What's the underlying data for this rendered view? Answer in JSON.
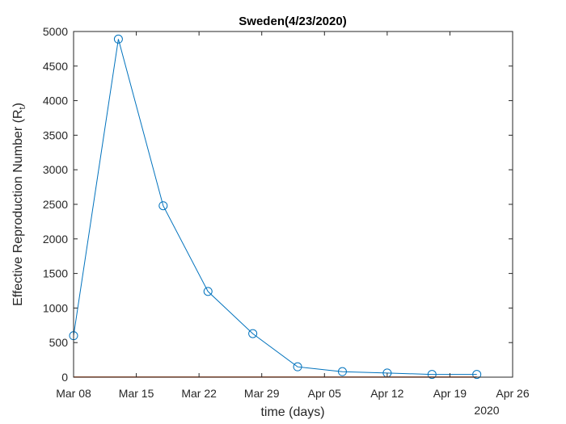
{
  "chart_data": {
    "type": "line",
    "title": "Sweden(4/23/2020)",
    "xlabel": "time (days)",
    "ylabel_main": "Effective Reproduction Number (R",
    "ylabel_sub": "t",
    "ylabel_close": ")",
    "year_label": "2020",
    "xlim": [
      "2020-03-08",
      "2020-04-26"
    ],
    "ylim": [
      0,
      5000
    ],
    "x_ticks": [
      {
        "date": "2020-03-08",
        "label": "Mar 08"
      },
      {
        "date": "2020-03-15",
        "label": "Mar 15"
      },
      {
        "date": "2020-03-22",
        "label": "Mar 22"
      },
      {
        "date": "2020-03-29",
        "label": "Mar 29"
      },
      {
        "date": "2020-04-05",
        "label": "Apr 05"
      },
      {
        "date": "2020-04-12",
        "label": "Apr 12"
      },
      {
        "date": "2020-04-19",
        "label": "Apr 19"
      },
      {
        "date": "2020-04-26",
        "label": "Apr 26"
      }
    ],
    "y_ticks": [
      0,
      500,
      1000,
      1500,
      2000,
      2500,
      3000,
      3500,
      4000,
      4500,
      5000
    ],
    "grid": false,
    "series": [
      {
        "color": "#0072BD",
        "marker": "circle",
        "x": [
          "2020-03-08",
          "2020-03-13",
          "2020-03-18",
          "2020-03-23",
          "2020-03-28",
          "2020-04-02",
          "2020-04-07",
          "2020-04-12",
          "2020-04-17",
          "2020-04-22"
        ],
        "y": [
          600,
          4890,
          2480,
          1240,
          630,
          150,
          80,
          60,
          40,
          40
        ]
      },
      {
        "color": "#D95319",
        "marker": "none",
        "x": [
          "2020-03-08",
          "2020-04-22"
        ],
        "y": [
          1,
          1
        ]
      }
    ]
  }
}
